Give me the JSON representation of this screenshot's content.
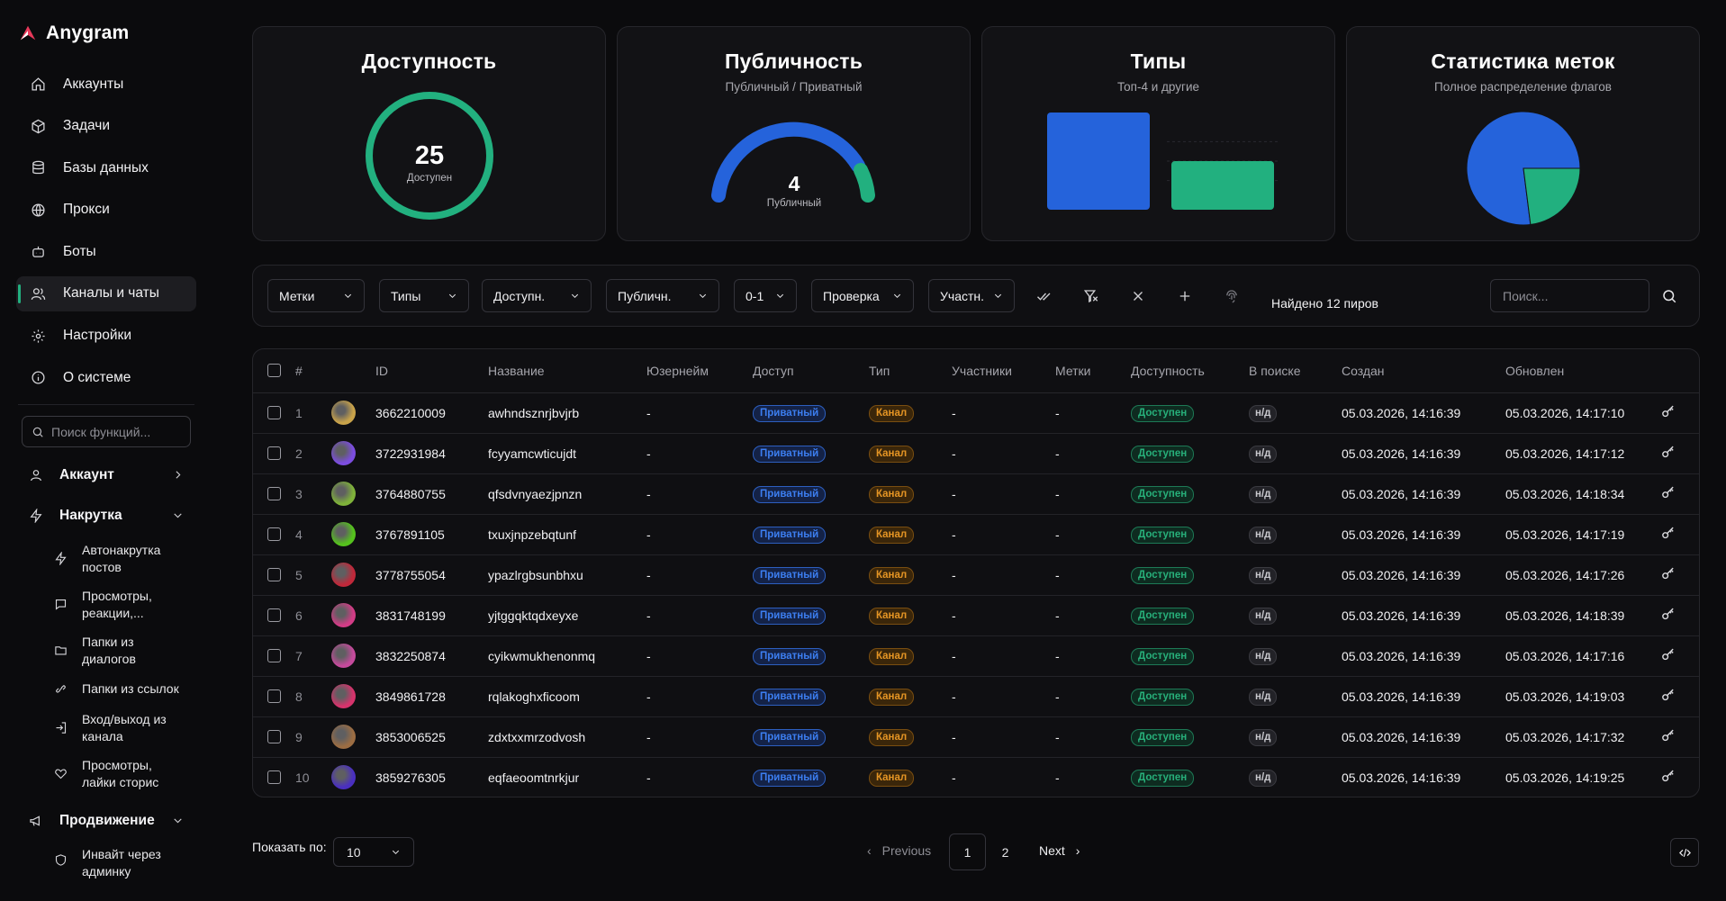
{
  "app": {
    "name": "Anygram",
    "accent": "#22b07f"
  },
  "sidebar": {
    "nav": [
      {
        "label": "Аккаунты",
        "icon": "home-icon"
      },
      {
        "label": "Задачи",
        "icon": "box-icon"
      },
      {
        "label": "Базы данных",
        "icon": "database-icon"
      },
      {
        "label": "Прокси",
        "icon": "globe-icon"
      },
      {
        "label": "Боты",
        "icon": "bot-icon"
      },
      {
        "label": "Каналы и чаты",
        "icon": "users-icon",
        "active": true
      },
      {
        "label": "Настройки",
        "icon": "gear-icon"
      },
      {
        "label": "О системе",
        "icon": "info-icon"
      }
    ],
    "search_placeholder": "Поиск функций...",
    "groups": [
      {
        "label": "Аккаунт",
        "icon": "user-icon",
        "expanded": false
      },
      {
        "label": "Накрутка",
        "icon": "zap-icon",
        "expanded": true,
        "items": [
          {
            "label": "Автонакрутка постов",
            "icon": "zap-icon"
          },
          {
            "label": "Просмотры, реакции,...",
            "icon": "message-icon"
          },
          {
            "label": "Папки из диалогов",
            "icon": "folder-icon"
          },
          {
            "label": "Папки из ссылок",
            "icon": "link-icon"
          },
          {
            "label": "Вход/выход из канала",
            "icon": "login-icon"
          },
          {
            "label": "Просмотры, лайки сторис",
            "icon": "heart-icon"
          }
        ]
      },
      {
        "label": "Продвижение",
        "icon": "megaphone-icon",
        "expanded": true,
        "items": [
          {
            "label": "Инвайт через админку",
            "icon": "shield-icon"
          }
        ]
      }
    ]
  },
  "cards": {
    "availability": {
      "title": "Доступность",
      "value": "25",
      "caption": "Доступен",
      "color": "#22b07f"
    },
    "publicity": {
      "title": "Публичность",
      "subtitle": "Публичный / Приватный",
      "value": "4",
      "caption": "Публичный",
      "public_share": 0.16
    },
    "types": {
      "title": "Типы",
      "subtitle": "Топ-4 и другие"
    },
    "tags": {
      "title": "Статистика меток",
      "subtitle": "Полное распределение флагов"
    }
  },
  "chart_data": [
    {
      "type": "bar",
      "categories": [
        "",
        ""
      ],
      "values": [
        2,
        1
      ],
      "colors": [
        "#2563db",
        "#22b07f"
      ]
    },
    {
      "type": "pie",
      "values": [
        0.77,
        0.23
      ],
      "colors": [
        "#2563db",
        "#22b07f"
      ]
    }
  ],
  "filters": {
    "buttons": [
      "Метки",
      "Типы",
      "Доступн.",
      "Публичн.",
      "0-1",
      "Проверка",
      "Участн."
    ],
    "icons": [
      "check-double-icon",
      "filter-clear-icon",
      "close-icon",
      "plus-icon",
      "fingerprint-icon"
    ],
    "found": "Найдено 12 пиров",
    "search_placeholder": "Поиск..."
  },
  "table": {
    "columns": [
      "#",
      "ID",
      "Название",
      "Юзернейм",
      "Доступ",
      "Тип",
      "Участники",
      "Метки",
      "Доступность",
      "В поиске",
      "Создан",
      "Обновлен"
    ],
    "rows": [
      {
        "n": "1",
        "id": "3662210009",
        "name": "awhndsznrjbvjrb",
        "username": "-",
        "access": "Приватный",
        "type": "Канал",
        "members": "-",
        "tags": "-",
        "avail": "Доступен",
        "search": "н/д",
        "created": "05.03.2026, 14:16:39",
        "updated": "05.03.2026, 14:17:10",
        "avatar": "#c9a34a"
      },
      {
        "n": "2",
        "id": "3722931984",
        "name": "fcyyamcwticujdt",
        "username": "-",
        "access": "Приватный",
        "type": "Канал",
        "members": "-",
        "tags": "-",
        "avail": "Доступен",
        "search": "н/д",
        "created": "05.03.2026, 14:16:39",
        "updated": "05.03.2026, 14:17:12",
        "avatar": "#7c4de0"
      },
      {
        "n": "3",
        "id": "3764880755",
        "name": "qfsdvnyaezjpnzn",
        "username": "-",
        "access": "Приватный",
        "type": "Канал",
        "members": "-",
        "tags": "-",
        "avail": "Доступен",
        "search": "н/д",
        "created": "05.03.2026, 14:16:39",
        "updated": "05.03.2026, 14:18:34",
        "avatar": "#7fb23a"
      },
      {
        "n": "4",
        "id": "3767891105",
        "name": "txuxjnpzebqtunf",
        "username": "-",
        "access": "Приватный",
        "type": "Канал",
        "members": "-",
        "tags": "-",
        "avail": "Доступен",
        "search": "н/д",
        "created": "05.03.2026, 14:16:39",
        "updated": "05.03.2026, 14:17:19",
        "avatar": "#55c21d"
      },
      {
        "n": "5",
        "id": "3778755054",
        "name": "ypazlrgbsunbhxu",
        "username": "-",
        "access": "Приватный",
        "type": "Канал",
        "members": "-",
        "tags": "-",
        "avail": "Доступен",
        "search": "н/д",
        "created": "05.03.2026, 14:16:39",
        "updated": "05.03.2026, 14:17:26",
        "avatar": "#c0283a"
      },
      {
        "n": "6",
        "id": "3831748199",
        "name": "yjtggqktqdxeyxe",
        "username": "-",
        "access": "Приватный",
        "type": "Канал",
        "members": "-",
        "tags": "-",
        "avail": "Доступен",
        "search": "н/д",
        "created": "05.03.2026, 14:16:39",
        "updated": "05.03.2026, 14:18:39",
        "avatar": "#d23c86"
      },
      {
        "n": "7",
        "id": "3832250874",
        "name": "cyikwmukhenonmq",
        "username": "-",
        "access": "Приватный",
        "type": "Канал",
        "members": "-",
        "tags": "-",
        "avail": "Доступен",
        "search": "н/д",
        "created": "05.03.2026, 14:16:39",
        "updated": "05.03.2026, 14:17:16",
        "avatar": "#c54a9c"
      },
      {
        "n": "8",
        "id": "3849861728",
        "name": "rqlakoghxficoom",
        "username": "-",
        "access": "Приватный",
        "type": "Канал",
        "members": "-",
        "tags": "-",
        "avail": "Доступен",
        "search": "н/д",
        "created": "05.03.2026, 14:16:39",
        "updated": "05.03.2026, 14:19:03",
        "avatar": "#d6336c"
      },
      {
        "n": "9",
        "id": "3853006525",
        "name": "zdxtxxmrzodvosh",
        "username": "-",
        "access": "Приватный",
        "type": "Канал",
        "members": "-",
        "tags": "-",
        "avail": "Доступен",
        "search": "н/д",
        "created": "05.03.2026, 14:16:39",
        "updated": "05.03.2026, 14:17:32",
        "avatar": "#9c6d43"
      },
      {
        "n": "10",
        "id": "3859276305",
        "name": "eqfaeoomtnrkjur",
        "username": "-",
        "access": "Приватный",
        "type": "Канал",
        "members": "-",
        "tags": "-",
        "avail": "Доступен",
        "search": "н/д",
        "created": "05.03.2026, 14:16:39",
        "updated": "05.03.2026, 14:19:25",
        "avatar": "#4a2fc0"
      }
    ]
  },
  "footer": {
    "show_label": "Показать по:",
    "page_size": "10",
    "prev": "Previous",
    "next": "Next",
    "pages": [
      "1",
      "2"
    ],
    "current_page": "1"
  }
}
